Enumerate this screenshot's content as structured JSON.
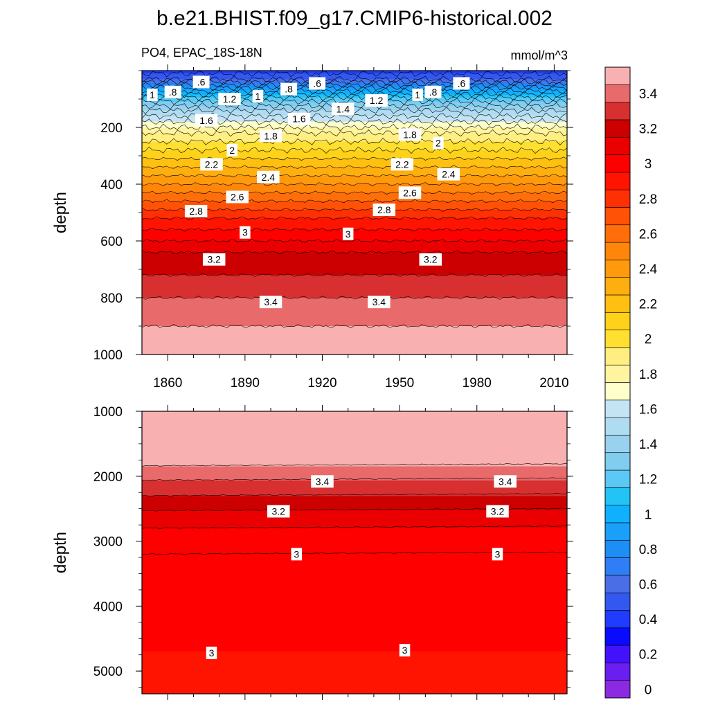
{
  "chart_data": {
    "title": "b.e21.BHIST.f09_g17.CMIP6-historical.002",
    "type": "contour",
    "left_string": "PO4, EPAC_18S-18N",
    "right_string": "mmol/m^3",
    "colorbar": {
      "levels": [
        0,
        0.1,
        0.2,
        0.3,
        0.4,
        0.5,
        0.6,
        0.7,
        0.8,
        0.9,
        1.0,
        1.1,
        1.2,
        1.3,
        1.4,
        1.5,
        1.6,
        1.7,
        1.8,
        1.9,
        2.0,
        2.1,
        2.2,
        2.3,
        2.4,
        2.5,
        2.6,
        2.7,
        2.8,
        2.9,
        3.0,
        3.1,
        3.2,
        3.3,
        3.4,
        3.5
      ],
      "tick_labels": [
        "0",
        "0.2",
        "0.4",
        "0.6",
        "0.8",
        "1",
        "1.2",
        "1.4",
        "1.6",
        "1.8",
        "2",
        "2.2",
        "2.4",
        "2.6",
        "2.8",
        "3",
        "3.2",
        "3.4"
      ],
      "colors": [
        "#8a2be2",
        "#6a1ef0",
        "#4212ff",
        "#0a0aff",
        "#1f3cff",
        "#3358f0",
        "#4a6ee6",
        "#2f7ef5",
        "#1e8ef7",
        "#1aa0fa",
        "#10b0ff",
        "#22c4f5",
        "#5cc8f5",
        "#80cdf0",
        "#98d2ee",
        "#b0dcf2",
        "#c4e4f4",
        "#ffffcc",
        "#fff5a0",
        "#ffee80",
        "#ffe030",
        "#ffd21a",
        "#ffc012",
        "#ffae10",
        "#ff9a0c",
        "#ff860a",
        "#ff6e08",
        "#ff5206",
        "#ff3004",
        "#ff1402",
        "#ff0000",
        "#ea0000",
        "#cc0000",
        "#d83030",
        "#e86a6a",
        "#f8b0b0"
      ]
    },
    "panels": [
      {
        "name": "upper",
        "ylabel": "depth",
        "ylim": [
          0,
          1000
        ],
        "yticks": [
          "200",
          "400",
          "600",
          "800",
          "1000"
        ],
        "xlim": [
          1850,
          2015
        ],
        "xticks": [
          "1860",
          "1890",
          "1920",
          "1950",
          "1980",
          "2010"
        ],
        "profile": [
          {
            "depth": 0,
            "value": 0.45
          },
          {
            "depth": 30,
            "value": 0.6
          },
          {
            "depth": 60,
            "value": 0.9
          },
          {
            "depth": 100,
            "value": 1.25
          },
          {
            "depth": 140,
            "value": 1.5
          },
          {
            "depth": 180,
            "value": 1.7
          },
          {
            "depth": 220,
            "value": 1.9
          },
          {
            "depth": 280,
            "value": 2.1
          },
          {
            "depth": 340,
            "value": 2.3
          },
          {
            "depth": 400,
            "value": 2.5
          },
          {
            "depth": 460,
            "value": 2.7
          },
          {
            "depth": 520,
            "value": 2.9
          },
          {
            "depth": 580,
            "value": 3.05
          },
          {
            "depth": 640,
            "value": 3.2
          },
          {
            "depth": 720,
            "value": 3.3
          },
          {
            "depth": 800,
            "value": 3.4
          },
          {
            "depth": 900,
            "value": 3.5
          },
          {
            "depth": 1000,
            "value": 3.55
          }
        ],
        "contour_labels": [
          {
            "text": ".6",
            "year": 1873,
            "depth": 40
          },
          {
            "text": "1",
            "year": 1854,
            "depth": 85
          },
          {
            "text": ".8",
            "year": 1862,
            "depth": 75
          },
          {
            "text": ".8",
            "year": 1907,
            "depth": 65
          },
          {
            "text": ".6",
            "year": 1918,
            "depth": 45
          },
          {
            "text": "1",
            "year": 1895,
            "depth": 90
          },
          {
            "text": "1.2",
            "year": 1884,
            "depth": 100
          },
          {
            "text": "1.4",
            "year": 1928,
            "depth": 135
          },
          {
            "text": "1.2",
            "year": 1941,
            "depth": 105
          },
          {
            "text": "1",
            "year": 1957,
            "depth": 85
          },
          {
            "text": ".8",
            "year": 1963,
            "depth": 75
          },
          {
            "text": ".6",
            "year": 1974,
            "depth": 45
          },
          {
            "text": "1.6",
            "year": 1875,
            "depth": 175
          },
          {
            "text": "1.6",
            "year": 1911,
            "depth": 170
          },
          {
            "text": "1.8",
            "year": 1900,
            "depth": 230
          },
          {
            "text": "1.8",
            "year": 1954,
            "depth": 225
          },
          {
            "text": "2",
            "year": 1885,
            "depth": 280
          },
          {
            "text": "2",
            "year": 1965,
            "depth": 255
          },
          {
            "text": "2.2",
            "year": 1877,
            "depth": 330
          },
          {
            "text": "2.4",
            "year": 1899,
            "depth": 375
          },
          {
            "text": "2.2",
            "year": 1951,
            "depth": 330
          },
          {
            "text": "2.4",
            "year": 1969,
            "depth": 365
          },
          {
            "text": "2.6",
            "year": 1887,
            "depth": 445
          },
          {
            "text": "2.6",
            "year": 1954,
            "depth": 430
          },
          {
            "text": "2.8",
            "year": 1871,
            "depth": 495
          },
          {
            "text": "2.8",
            "year": 1944,
            "depth": 490
          },
          {
            "text": "3",
            "year": 1890,
            "depth": 570
          },
          {
            "text": "3",
            "year": 1930,
            "depth": 575
          },
          {
            "text": "3.2",
            "year": 1878,
            "depth": 665
          },
          {
            "text": "3.2",
            "year": 1962,
            "depth": 665
          },
          {
            "text": "3.4",
            "year": 1900,
            "depth": 815
          },
          {
            "text": "3.4",
            "year": 1942,
            "depth": 815
          }
        ]
      },
      {
        "name": "lower",
        "ylabel": "depth",
        "ylim": [
          1000,
          5350
        ],
        "yticks": [
          "1000",
          "2000",
          "3000",
          "4000",
          "5000"
        ],
        "xlim": [
          1850,
          2015
        ],
        "profile": [
          {
            "depth": 1000,
            "value": 3.55
          },
          {
            "depth": 1840,
            "value": 3.5
          },
          {
            "depth": 2060,
            "value": 3.4
          },
          {
            "depth": 2300,
            "value": 3.3
          },
          {
            "depth": 2530,
            "value": 3.2
          },
          {
            "depth": 2800,
            "value": 3.1
          },
          {
            "depth": 3200,
            "value": 3.0
          },
          {
            "depth": 4700,
            "value": 3.0
          },
          {
            "depth": 5350,
            "value": 2.95
          }
        ],
        "contour_labels": [
          {
            "text": "3.4",
            "year": 1920,
            "depth": 2080
          },
          {
            "text": "3.4",
            "year": 1991,
            "depth": 2080
          },
          {
            "text": "3.2",
            "year": 1903,
            "depth": 2540
          },
          {
            "text": "3.2",
            "year": 1988,
            "depth": 2540
          },
          {
            "text": "3",
            "year": 1910,
            "depth": 3200
          },
          {
            "text": "3",
            "year": 1988,
            "depth": 3200
          },
          {
            "text": "3",
            "year": 1877,
            "depth": 4720
          },
          {
            "text": "3",
            "year": 1952,
            "depth": 4680
          }
        ]
      }
    ]
  }
}
